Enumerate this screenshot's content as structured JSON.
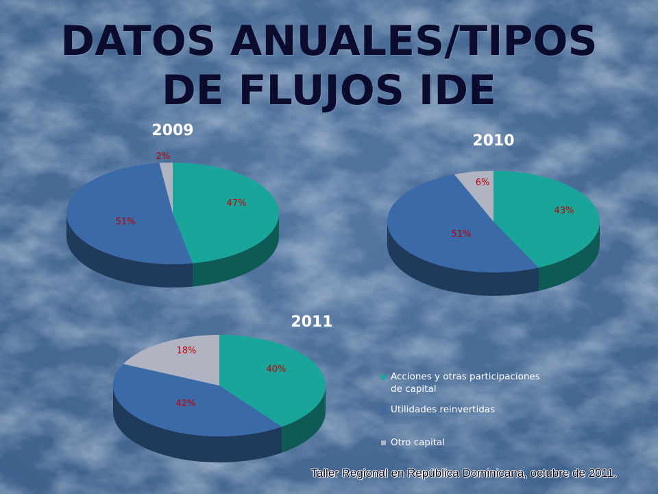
{
  "slide": {
    "title_line_1": "DATOS ANUALES/TIPOS",
    "title_line_2": "DE FLUJOS IDE",
    "footer": "Taller Regional en República Dominicana, octubre de 2011."
  },
  "colors": {
    "background": "#4a6e98",
    "title": "#0b0b2e",
    "year_label": "#ffffff",
    "pct_label": "#c00000"
  },
  "legend": [
    {
      "label": "Acciones y otras participaciones de capital",
      "color": "#1aa59a"
    },
    {
      "label": "Utilidades reinvertidas",
      "color": "#3a6aa8"
    },
    {
      "label": "Otro capital",
      "color": "#b0b4c2"
    }
  ],
  "chart_data": [
    {
      "type": "pie",
      "title": "2009",
      "series": [
        {
          "name": "Acciones y otras participaciones de capital",
          "value": 47,
          "label": "47%"
        },
        {
          "name": "Utilidades reinvertidas",
          "value": 51,
          "label": "51%"
        },
        {
          "name": "Otro capital",
          "value": 2,
          "label": "2%"
        }
      ]
    },
    {
      "type": "pie",
      "title": "2010",
      "series": [
        {
          "name": "Acciones y otras participaciones de capital",
          "value": 43,
          "label": "43%"
        },
        {
          "name": "Utilidades reinvertidas",
          "value": 51,
          "label": "51%"
        },
        {
          "name": "Otro capital",
          "value": 6,
          "label": "6%"
        }
      ]
    },
    {
      "type": "pie",
      "title": "2011",
      "series": [
        {
          "name": "Acciones y otras participaciones de capital",
          "value": 40,
          "label": "40%"
        },
        {
          "name": "Utilidades reinvertidas",
          "value": 42,
          "label": "42%"
        },
        {
          "name": "Otro capital",
          "value": 18,
          "label": "18%"
        }
      ]
    }
  ]
}
